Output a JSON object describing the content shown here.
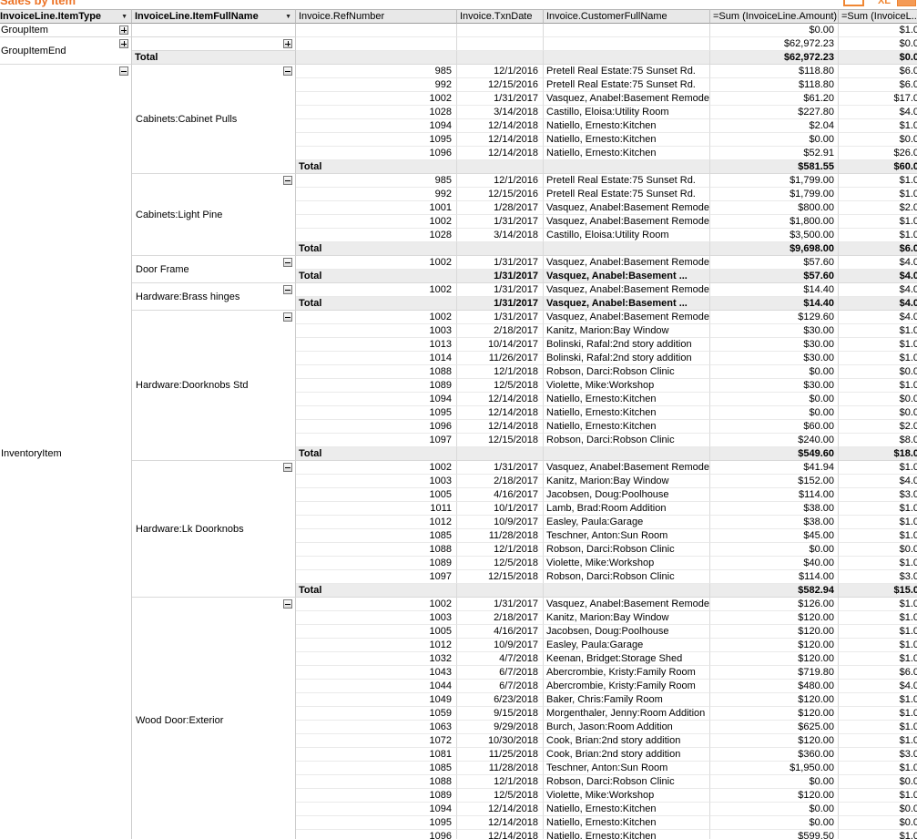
{
  "title": "Sales by Item",
  "accent_color": "#ed7326",
  "titlebar_icons": {
    "xl_label": "XL"
  },
  "total_label": "Total",
  "columns": [
    {
      "label": "InvoiceLine.ItemType",
      "dropdown": true
    },
    {
      "label": "InvoiceLine.ItemFullName",
      "dropdown": true
    },
    {
      "label": "Invoice.RefNumber",
      "dropdown": false
    },
    {
      "label": "Invoice.TxnDate",
      "dropdown": false
    },
    {
      "label": "Invoice.CustomerFullName",
      "dropdown": false
    },
    {
      "label": "=Sum (InvoiceLine.Amount)",
      "dropdown": false
    },
    {
      "label": "=Sum (InvoiceL...",
      "dropdown": false
    }
  ],
  "sections": [
    {
      "item_type": "GroupItem",
      "expander": "plus",
      "groups": [
        {
          "name": "",
          "expander": null,
          "rows": [
            {
              "ref": "",
              "date": "",
              "customer": "",
              "amount": "$0.00",
              "amount2": "$1.0"
            }
          ],
          "total": null
        }
      ]
    },
    {
      "item_type": "GroupItemEnd",
      "expander": "plus",
      "groups": [
        {
          "name": "",
          "expander": "plus",
          "rows": [
            {
              "ref": "",
              "date": "",
              "customer": "",
              "amount": "$62,972.23",
              "amount2": "$0.0"
            }
          ],
          "total": {
            "placement": "name",
            "date": "",
            "customer": "",
            "amount": "$62,972.23",
            "amount2": "$0.0"
          }
        }
      ]
    },
    {
      "item_type": "InventoryItem",
      "expander": "minus",
      "groups": [
        {
          "name": "Cabinets:Cabinet Pulls",
          "expander": "minus",
          "rows": [
            {
              "ref": "985",
              "date": "12/1/2016",
              "customer": "Pretell Real Estate:75 Sunset Rd.",
              "amount": "$118.80",
              "amount2": "$6.0"
            },
            {
              "ref": "992",
              "date": "12/15/2016",
              "customer": "Pretell Real Estate:75 Sunset Rd.",
              "amount": "$118.80",
              "amount2": "$6.0"
            },
            {
              "ref": "1002",
              "date": "1/31/2017",
              "customer": "Vasquez, Anabel:Basement Remodel",
              "amount": "$61.20",
              "amount2": "$17.0"
            },
            {
              "ref": "1028",
              "date": "3/14/2018",
              "customer": "Castillo, Eloisa:Utility Room",
              "amount": "$227.80",
              "amount2": "$4.0"
            },
            {
              "ref": "1094",
              "date": "12/14/2018",
              "customer": "Natiello, Ernesto:Kitchen",
              "amount": "$2.04",
              "amount2": "$1.0"
            },
            {
              "ref": "1095",
              "date": "12/14/2018",
              "customer": "Natiello, Ernesto:Kitchen",
              "amount": "$0.00",
              "amount2": "$0.0"
            },
            {
              "ref": "1096",
              "date": "12/14/2018",
              "customer": "Natiello, Ernesto:Kitchen",
              "amount": "$52.91",
              "amount2": "$26.0"
            }
          ],
          "total": {
            "placement": "ref",
            "date": "",
            "customer": "",
            "amount": "$581.55",
            "amount2": "$60.0"
          }
        },
        {
          "name": "Cabinets:Light Pine",
          "expander": "minus",
          "rows": [
            {
              "ref": "985",
              "date": "12/1/2016",
              "customer": "Pretell Real Estate:75 Sunset Rd.",
              "amount": "$1,799.00",
              "amount2": "$1.0"
            },
            {
              "ref": "992",
              "date": "12/15/2016",
              "customer": "Pretell Real Estate:75 Sunset Rd.",
              "amount": "$1,799.00",
              "amount2": "$1.0"
            },
            {
              "ref": "1001",
              "date": "1/28/2017",
              "customer": "Vasquez, Anabel:Basement Remodel",
              "amount": "$800.00",
              "amount2": "$2.0"
            },
            {
              "ref": "1002",
              "date": "1/31/2017",
              "customer": "Vasquez, Anabel:Basement Remodel",
              "amount": "$1,800.00",
              "amount2": "$1.0"
            },
            {
              "ref": "1028",
              "date": "3/14/2018",
              "customer": "Castillo, Eloisa:Utility Room",
              "amount": "$3,500.00",
              "amount2": "$1.0"
            }
          ],
          "total": {
            "placement": "ref",
            "date": "",
            "customer": "",
            "amount": "$9,698.00",
            "amount2": "$6.0"
          }
        },
        {
          "name": "Door Frame",
          "expander": "minus",
          "rows": [
            {
              "ref": "1002",
              "date": "1/31/2017",
              "customer": "Vasquez, Anabel:Basement Remodel",
              "amount": "$57.60",
              "amount2": "$4.0"
            }
          ],
          "total": {
            "placement": "ref",
            "date": "1/31/2017",
            "customer": "Vasquez, Anabel:Basement ...",
            "amount": "$57.60",
            "amount2": "$4.0"
          }
        },
        {
          "name": "Hardware:Brass hinges",
          "expander": "minus",
          "rows": [
            {
              "ref": "1002",
              "date": "1/31/2017",
              "customer": "Vasquez, Anabel:Basement Remodel",
              "amount": "$14.40",
              "amount2": "$4.0"
            }
          ],
          "total": {
            "placement": "ref",
            "date": "1/31/2017",
            "customer": "Vasquez, Anabel:Basement ...",
            "amount": "$14.40",
            "amount2": "$4.0"
          }
        },
        {
          "name": "Hardware:Doorknobs Std",
          "expander": "minus",
          "rows": [
            {
              "ref": "1002",
              "date": "1/31/2017",
              "customer": "Vasquez, Anabel:Basement Remodel",
              "amount": "$129.60",
              "amount2": "$4.0"
            },
            {
              "ref": "1003",
              "date": "2/18/2017",
              "customer": "Kanitz, Marion:Bay Window",
              "amount": "$30.00",
              "amount2": "$1.0"
            },
            {
              "ref": "1013",
              "date": "10/14/2017",
              "customer": "Bolinski, Rafal:2nd story addition",
              "amount": "$30.00",
              "amount2": "$1.0"
            },
            {
              "ref": "1014",
              "date": "11/26/2017",
              "customer": "Bolinski, Rafal:2nd story addition",
              "amount": "$30.00",
              "amount2": "$1.0"
            },
            {
              "ref": "1088",
              "date": "12/1/2018",
              "customer": "Robson, Darci:Robson Clinic",
              "amount": "$0.00",
              "amount2": "$0.0"
            },
            {
              "ref": "1089",
              "date": "12/5/2018",
              "customer": "Violette, Mike:Workshop",
              "amount": "$30.00",
              "amount2": "$1.0"
            },
            {
              "ref": "1094",
              "date": "12/14/2018",
              "customer": "Natiello, Ernesto:Kitchen",
              "amount": "$0.00",
              "amount2": "$0.0"
            },
            {
              "ref": "1095",
              "date": "12/14/2018",
              "customer": "Natiello, Ernesto:Kitchen",
              "amount": "$0.00",
              "amount2": "$0.0"
            },
            {
              "ref": "1096",
              "date": "12/14/2018",
              "customer": "Natiello, Ernesto:Kitchen",
              "amount": "$60.00",
              "amount2": "$2.0"
            },
            {
              "ref": "1097",
              "date": "12/15/2018",
              "customer": "Robson, Darci:Robson Clinic",
              "amount": "$240.00",
              "amount2": "$8.0"
            }
          ],
          "total": {
            "placement": "ref",
            "date": "",
            "customer": "",
            "amount": "$549.60",
            "amount2": "$18.0"
          }
        },
        {
          "name": "Hardware:Lk Doorknobs",
          "expander": "minus",
          "rows": [
            {
              "ref": "1002",
              "date": "1/31/2017",
              "customer": "Vasquez, Anabel:Basement Remodel",
              "amount": "$41.94",
              "amount2": "$1.0"
            },
            {
              "ref": "1003",
              "date": "2/18/2017",
              "customer": "Kanitz, Marion:Bay Window",
              "amount": "$152.00",
              "amount2": "$4.0"
            },
            {
              "ref": "1005",
              "date": "4/16/2017",
              "customer": "Jacobsen, Doug:Poolhouse",
              "amount": "$114.00",
              "amount2": "$3.0"
            },
            {
              "ref": "1011",
              "date": "10/1/2017",
              "customer": "Lamb, Brad:Room Addition",
              "amount": "$38.00",
              "amount2": "$1.0"
            },
            {
              "ref": "1012",
              "date": "10/9/2017",
              "customer": "Easley, Paula:Garage",
              "amount": "$38.00",
              "amount2": "$1.0"
            },
            {
              "ref": "1085",
              "date": "11/28/2018",
              "customer": "Teschner, Anton:Sun Room",
              "amount": "$45.00",
              "amount2": "$1.0"
            },
            {
              "ref": "1088",
              "date": "12/1/2018",
              "customer": "Robson, Darci:Robson Clinic",
              "amount": "$0.00",
              "amount2": "$0.0"
            },
            {
              "ref": "1089",
              "date": "12/5/2018",
              "customer": "Violette, Mike:Workshop",
              "amount": "$40.00",
              "amount2": "$1.0"
            },
            {
              "ref": "1097",
              "date": "12/15/2018",
              "customer": "Robson, Darci:Robson Clinic",
              "amount": "$114.00",
              "amount2": "$3.0"
            }
          ],
          "total": {
            "placement": "ref",
            "date": "",
            "customer": "",
            "amount": "$582.94",
            "amount2": "$15.0"
          }
        },
        {
          "name": "Wood Door:Exterior",
          "expander": "minus",
          "rows": [
            {
              "ref": "1002",
              "date": "1/31/2017",
              "customer": "Vasquez, Anabel:Basement Remodel",
              "amount": "$126.00",
              "amount2": "$1.0"
            },
            {
              "ref": "1003",
              "date": "2/18/2017",
              "customer": "Kanitz, Marion:Bay Window",
              "amount": "$120.00",
              "amount2": "$1.0"
            },
            {
              "ref": "1005",
              "date": "4/16/2017",
              "customer": "Jacobsen, Doug:Poolhouse",
              "amount": "$120.00",
              "amount2": "$1.0"
            },
            {
              "ref": "1012",
              "date": "10/9/2017",
              "customer": "Easley, Paula:Garage",
              "amount": "$120.00",
              "amount2": "$1.0"
            },
            {
              "ref": "1032",
              "date": "4/7/2018",
              "customer": "Keenan, Bridget:Storage Shed",
              "amount": "$120.00",
              "amount2": "$1.0"
            },
            {
              "ref": "1043",
              "date": "6/7/2018",
              "customer": "Abercrombie, Kristy:Family Room",
              "amount": "$719.80",
              "amount2": "$6.0"
            },
            {
              "ref": "1044",
              "date": "6/7/2018",
              "customer": "Abercrombie, Kristy:Family Room",
              "amount": "$480.00",
              "amount2": "$4.0"
            },
            {
              "ref": "1049",
              "date": "6/23/2018",
              "customer": "Baker, Chris:Family Room",
              "amount": "$120.00",
              "amount2": "$1.0"
            },
            {
              "ref": "1059",
              "date": "9/15/2018",
              "customer": "Morgenthaler, Jenny:Room Addition",
              "amount": "$120.00",
              "amount2": "$1.0"
            },
            {
              "ref": "1063",
              "date": "9/29/2018",
              "customer": "Burch, Jason:Room Addition",
              "amount": "$625.00",
              "amount2": "$1.0"
            },
            {
              "ref": "1072",
              "date": "10/30/2018",
              "customer": "Cook, Brian:2nd story addition",
              "amount": "$120.00",
              "amount2": "$1.0"
            },
            {
              "ref": "1081",
              "date": "11/25/2018",
              "customer": "Cook, Brian:2nd story addition",
              "amount": "$360.00",
              "amount2": "$3.0"
            },
            {
              "ref": "1085",
              "date": "11/28/2018",
              "customer": "Teschner, Anton:Sun Room",
              "amount": "$1,950.00",
              "amount2": "$1.0"
            },
            {
              "ref": "1088",
              "date": "12/1/2018",
              "customer": "Robson, Darci:Robson Clinic",
              "amount": "$0.00",
              "amount2": "$0.0"
            },
            {
              "ref": "1089",
              "date": "12/5/2018",
              "customer": "Violette, Mike:Workshop",
              "amount": "$120.00",
              "amount2": "$1.0"
            },
            {
              "ref": "1094",
              "date": "12/14/2018",
              "customer": "Natiello, Ernesto:Kitchen",
              "amount": "$0.00",
              "amount2": "$0.0"
            },
            {
              "ref": "1095",
              "date": "12/14/2018",
              "customer": "Natiello, Ernesto:Kitchen",
              "amount": "$0.00",
              "amount2": "$0.0"
            },
            {
              "ref": "1096",
              "date": "12/14/2018",
              "customer": "Natiello, Ernesto:Kitchen",
              "amount": "$599.50",
              "amount2": "$1.0"
            }
          ],
          "total": null
        }
      ]
    }
  ]
}
